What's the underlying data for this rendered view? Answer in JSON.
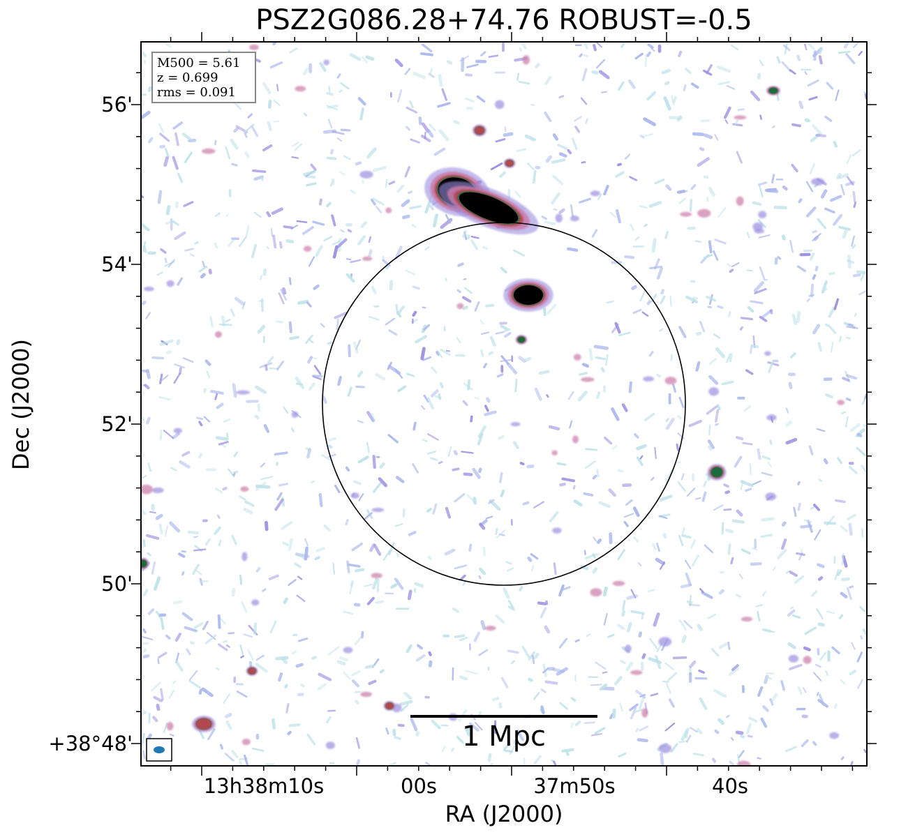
{
  "figure": {
    "title": "PSZ2G086.28+74.76 ROBUST=-0.5",
    "xlabel": "RA (J2000)",
    "ylabel": "Dec (J2000)"
  },
  "axes": {
    "y_ticks": [
      "56'",
      "54'",
      "52'",
      "50'",
      "+38°48'"
    ],
    "x_ticks": [
      "13h38m10s",
      "00s",
      "37m50s",
      "40s"
    ]
  },
  "info": {
    "mass": "M500 = 5.61",
    "redshift": "z = 0.699",
    "rms": "rms = 0.091"
  },
  "scale_bar": {
    "label": "1 Mpc"
  },
  "colors": {
    "noise_light": "#bfe3ea",
    "noise_blue": "#a9b7ec",
    "noise_violet": "#9b8ee0",
    "emission_pink": "#c97aa8",
    "emission_red": "#b3474f",
    "emission_green": "#1d6b3c",
    "saturated": "#000000",
    "beam": "#1f77b4"
  },
  "icons": {
    "beam": "beam-ellipse-icon"
  }
}
